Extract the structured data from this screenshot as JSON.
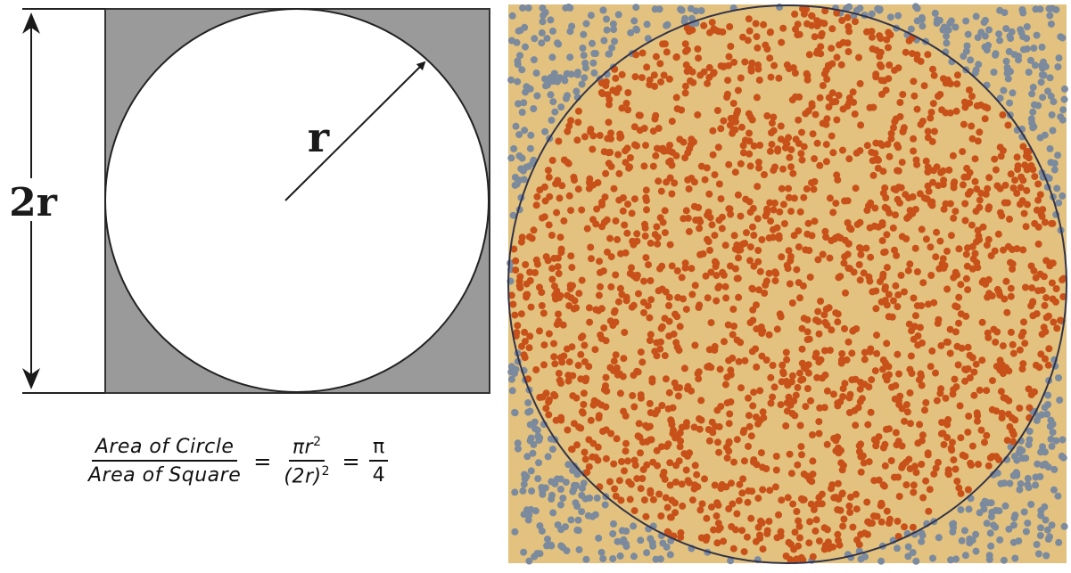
{
  "left_diagram": {
    "side_label": "2r",
    "radius_label": "r",
    "square_fill": "#9a9a9a",
    "circle_fill": "#ffffff"
  },
  "formula": {
    "lhs_numerator": "Area of Circle",
    "lhs_denominator": "Area of Square",
    "mid_numerator_base": "πr",
    "mid_numerator_exp": "2",
    "mid_denominator_base": "(2r)",
    "mid_denominator_exp": "2",
    "rhs_numerator": "π",
    "rhs_denominator": "4",
    "equals": "="
  },
  "right_panel": {
    "background": "#e2c27e",
    "circle_stroke": "#333348",
    "inside_color": "#c8511a",
    "outside_color": "#7c8a9e"
  }
}
